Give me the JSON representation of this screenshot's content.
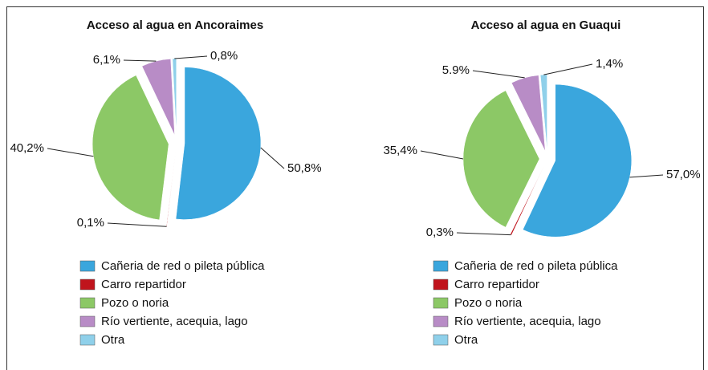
{
  "chart_data": [
    {
      "type": "pie",
      "title": "Acceso al agua en Ancoraimes",
      "categories": [
        "Cañeria de red o pileta pública",
        "Carro repartidor",
        "Pozo o noria",
        "Río vertiente, acequia, lago",
        "Otra"
      ],
      "values": [
        50.8,
        0.1,
        40.2,
        6.1,
        0.8
      ],
      "value_labels": [
        "50,8%",
        "0,1%",
        "40,2%",
        "6,1%",
        "0,8%"
      ],
      "colors": [
        "#3aa6dd",
        "#c0141c",
        "#8cc866",
        "#b88cc6",
        "#8fd0ea"
      ]
    },
    {
      "type": "pie",
      "title": "Acceso al agua en Guaqui",
      "categories": [
        "Cañeria de red o pileta pública",
        "Carro repartidor",
        "Pozo o noria",
        "Río vertiente, acequia, lago",
        "Otra"
      ],
      "values": [
        57.0,
        0.3,
        35.4,
        5.9,
        1.4
      ],
      "value_labels": [
        "57,0%",
        "0,3%",
        "35,4%",
        "5.9%",
        "1,4%"
      ],
      "colors": [
        "#3aa6dd",
        "#c0141c",
        "#8cc866",
        "#b88cc6",
        "#8fd0ea"
      ]
    }
  ]
}
